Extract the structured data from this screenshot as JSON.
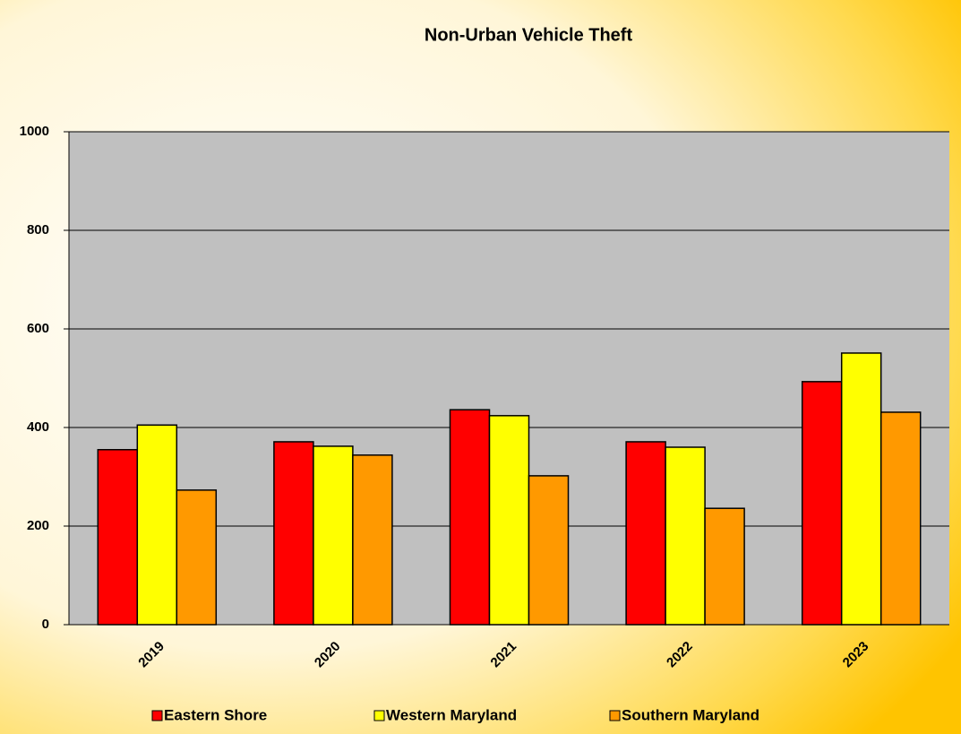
{
  "chart_data": {
    "type": "bar",
    "title": "Non-Urban Vehicle Theft",
    "categories": [
      "2019",
      "2020",
      "2021",
      "2022",
      "2023"
    ],
    "series": [
      {
        "name": "Eastern Shore",
        "color": "#ff0000",
        "values": [
          355,
          371,
          436,
          371,
          493
        ]
      },
      {
        "name": "Western Maryland",
        "color": "#ffff00",
        "values": [
          405,
          362,
          424,
          360,
          551
        ]
      },
      {
        "name": "Southern Maryland",
        "color": "#ff9900",
        "values": [
          273,
          344,
          302,
          236,
          431
        ]
      }
    ],
    "ylim": [
      0,
      1000
    ],
    "yticks": [
      0,
      200,
      400,
      600,
      800,
      1000
    ],
    "grid": true,
    "legend": "bottom"
  }
}
